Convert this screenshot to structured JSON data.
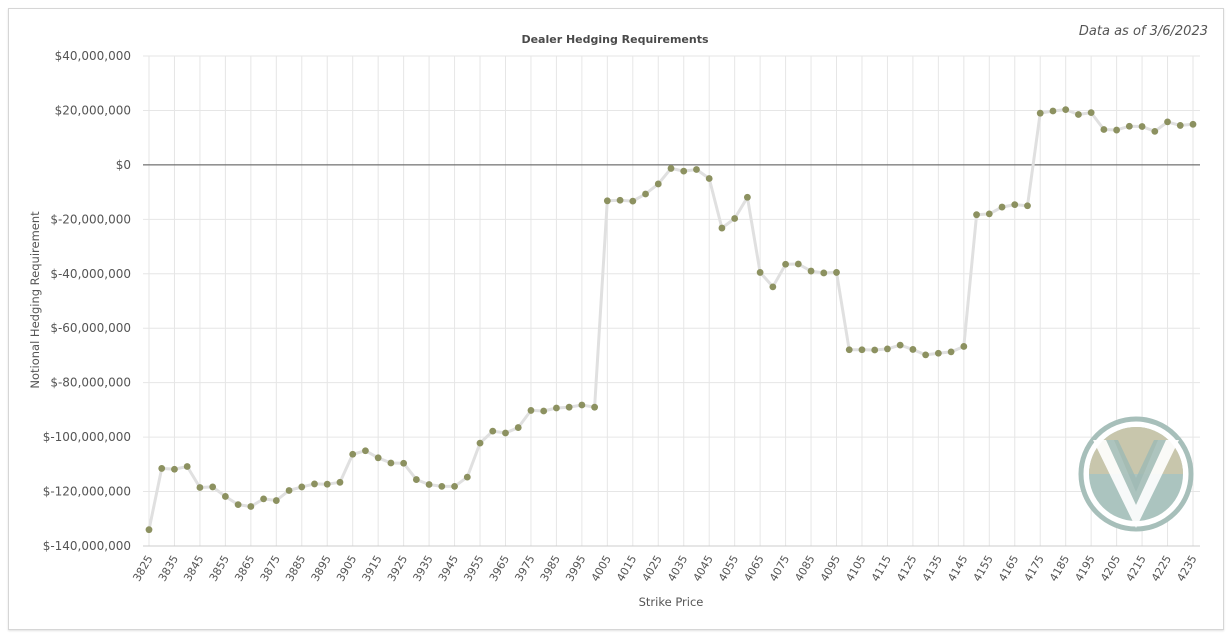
{
  "as_of": "Data as of 3/6/2023",
  "colors": {
    "marker": "#8c9160",
    "line": "#e0e0e0",
    "grid": "#e6e6e6",
    "zero_line": "#555555",
    "logo_ring": "#a7bfba",
    "logo_tan": "#c9c6ab",
    "logo_teal": "#8fb0aa"
  },
  "logo": {
    "icon": "vanna-v-logo"
  },
  "chart_data": {
    "type": "line",
    "title": "Dealer Hedging Requirements",
    "xlabel": "Strike Price",
    "ylabel": "Notional Hedging Requirement",
    "ylim": [
      -140000000,
      40000000
    ],
    "yticks": [
      40000000,
      20000000,
      0,
      -20000000,
      -40000000,
      -60000000,
      -80000000,
      -100000000,
      -120000000,
      -140000000
    ],
    "ytick_labels": [
      "$40,000,000",
      "$20,000,000",
      "$0",
      "$-20,000,000",
      "$-40,000,000",
      "$-60,000,000",
      "$-80,000,000",
      "$-100,000,000",
      "$-120,000,000",
      "$-140,000,000"
    ],
    "xtick_labels": [
      "3825",
      "3835",
      "3845",
      "3855",
      "3865",
      "3875",
      "3885",
      "3895",
      "3905",
      "3915",
      "3925",
      "3935",
      "3945",
      "3955",
      "3965",
      "3975",
      "3985",
      "3995",
      "4005",
      "4015",
      "4025",
      "4035",
      "4045",
      "4055",
      "4065",
      "4075",
      "4085",
      "4095",
      "4105",
      "4115",
      "4125",
      "4135",
      "4145",
      "4155",
      "4165",
      "4175",
      "4185",
      "4195",
      "4205",
      "4215",
      "4225",
      "4235"
    ],
    "grid": true,
    "legend": "none",
    "x": [
      3825,
      3830,
      3835,
      3840,
      3845,
      3850,
      3855,
      3860,
      3865,
      3870,
      3875,
      3880,
      3885,
      3890,
      3895,
      3900,
      3905,
      3910,
      3915,
      3920,
      3925,
      3930,
      3935,
      3940,
      3945,
      3950,
      3955,
      3960,
      3965,
      3970,
      3975,
      3980,
      3985,
      3990,
      3995,
      4000,
      4005,
      4010,
      4015,
      4020,
      4025,
      4030,
      4035,
      4040,
      4045,
      4050,
      4055,
      4060,
      4065,
      4070,
      4075,
      4080,
      4085,
      4090,
      4095,
      4100,
      4105,
      4110,
      4115,
      4120,
      4125,
      4130,
      4135,
      4140,
      4145,
      4150,
      4155,
      4160,
      4165,
      4170,
      4175,
      4180,
      4185,
      4190,
      4195,
      4200,
      4205,
      4210,
      4215,
      4220,
      4225,
      4230,
      4235
    ],
    "series": [
      {
        "values": [
          -134000000,
          -111500000,
          -111800000,
          -110800000,
          -118500000,
          -118300000,
          -121800000,
          -124800000,
          -125500000,
          -122700000,
          -123300000,
          -119600000,
          -118300000,
          -117200000,
          -117300000,
          -116600000,
          -106300000,
          -105000000,
          -107600000,
          -109500000,
          -109600000,
          -115600000,
          -117400000,
          -118100000,
          -118100000,
          -114700000,
          -102200000,
          -97800000,
          -98500000,
          -96500000,
          -90200000,
          -90400000,
          -89300000,
          -89000000,
          -88200000,
          -89000000,
          -13200000,
          -13000000,
          -13300000,
          -10700000,
          -7000000,
          -1300000,
          -2300000,
          -1700000,
          -5000000,
          -23200000,
          -19700000,
          -11900000,
          -39500000,
          -44800000,
          -36500000,
          -36400000,
          -39000000,
          -39700000,
          -39500000,
          -67900000,
          -67900000,
          -68000000,
          -67600000,
          -66200000,
          -67800000,
          -69800000,
          -69200000,
          -68700000,
          -66700000,
          -18300000,
          -18000000,
          -15500000,
          -14600000,
          -15000000,
          19000000,
          19800000,
          20300000,
          18500000,
          19200000,
          13000000,
          12800000,
          14200000,
          14100000,
          12300000,
          15800000,
          14500000,
          14900000
        ]
      }
    ]
  }
}
